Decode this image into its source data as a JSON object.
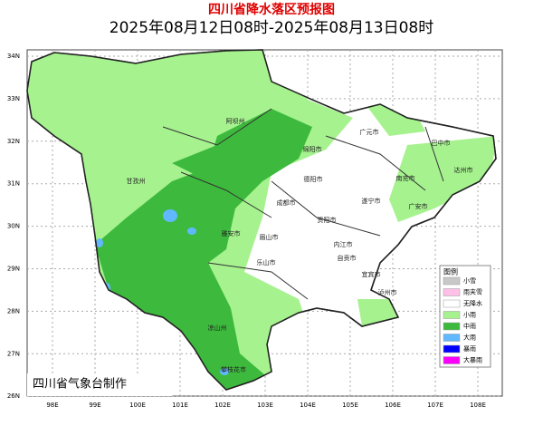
{
  "header": {
    "title": "四川省降水落区预报图",
    "subtitle": "2025年08月12日08时-2025年08月13日08时"
  },
  "map": {
    "lat_labels": [
      "34N",
      "33N",
      "32N",
      "31N",
      "30N",
      "29N",
      "28N",
      "27N",
      "26N"
    ],
    "lon_labels": [
      "98E",
      "99E",
      "100E",
      "101E",
      "102E",
      "103E",
      "104E",
      "105E",
      "106E",
      "107E",
      "108E"
    ],
    "places": [
      {
        "label": "阿坝州"
      },
      {
        "label": "甘孜州"
      },
      {
        "label": "绵阳市"
      },
      {
        "label": "广元市"
      },
      {
        "label": "巴中市"
      },
      {
        "label": "达州市"
      },
      {
        "label": "南充市"
      },
      {
        "label": "德阳市"
      },
      {
        "label": "成都市"
      },
      {
        "label": "遂宁市"
      },
      {
        "label": "广安市"
      },
      {
        "label": "雅安市"
      },
      {
        "label": "眉山市"
      },
      {
        "label": "资阳市"
      },
      {
        "label": "内江市"
      },
      {
        "label": "乐山市"
      },
      {
        "label": "自贡市"
      },
      {
        "label": "宜宾市"
      },
      {
        "label": "泸州市"
      },
      {
        "label": "凉山州"
      },
      {
        "label": "攀枝花市"
      }
    ]
  },
  "legend": {
    "title": "图例",
    "items": [
      {
        "label": "小雪",
        "color": "#c8c8c8"
      },
      {
        "label": "雨夹雪",
        "color": "#ffc0e8"
      },
      {
        "label": "无降水",
        "color": "#ffffff"
      },
      {
        "label": "小雨",
        "color": "#a6f28f"
      },
      {
        "label": "中雨",
        "color": "#3dba3d"
      },
      {
        "label": "大雨",
        "color": "#61b8ff"
      },
      {
        "label": "暴雨",
        "color": "#0000fe"
      },
      {
        "label": "大暴雨",
        "color": "#fa00fa"
      }
    ]
  },
  "footer": {
    "credit": "四川省气象台制作"
  }
}
